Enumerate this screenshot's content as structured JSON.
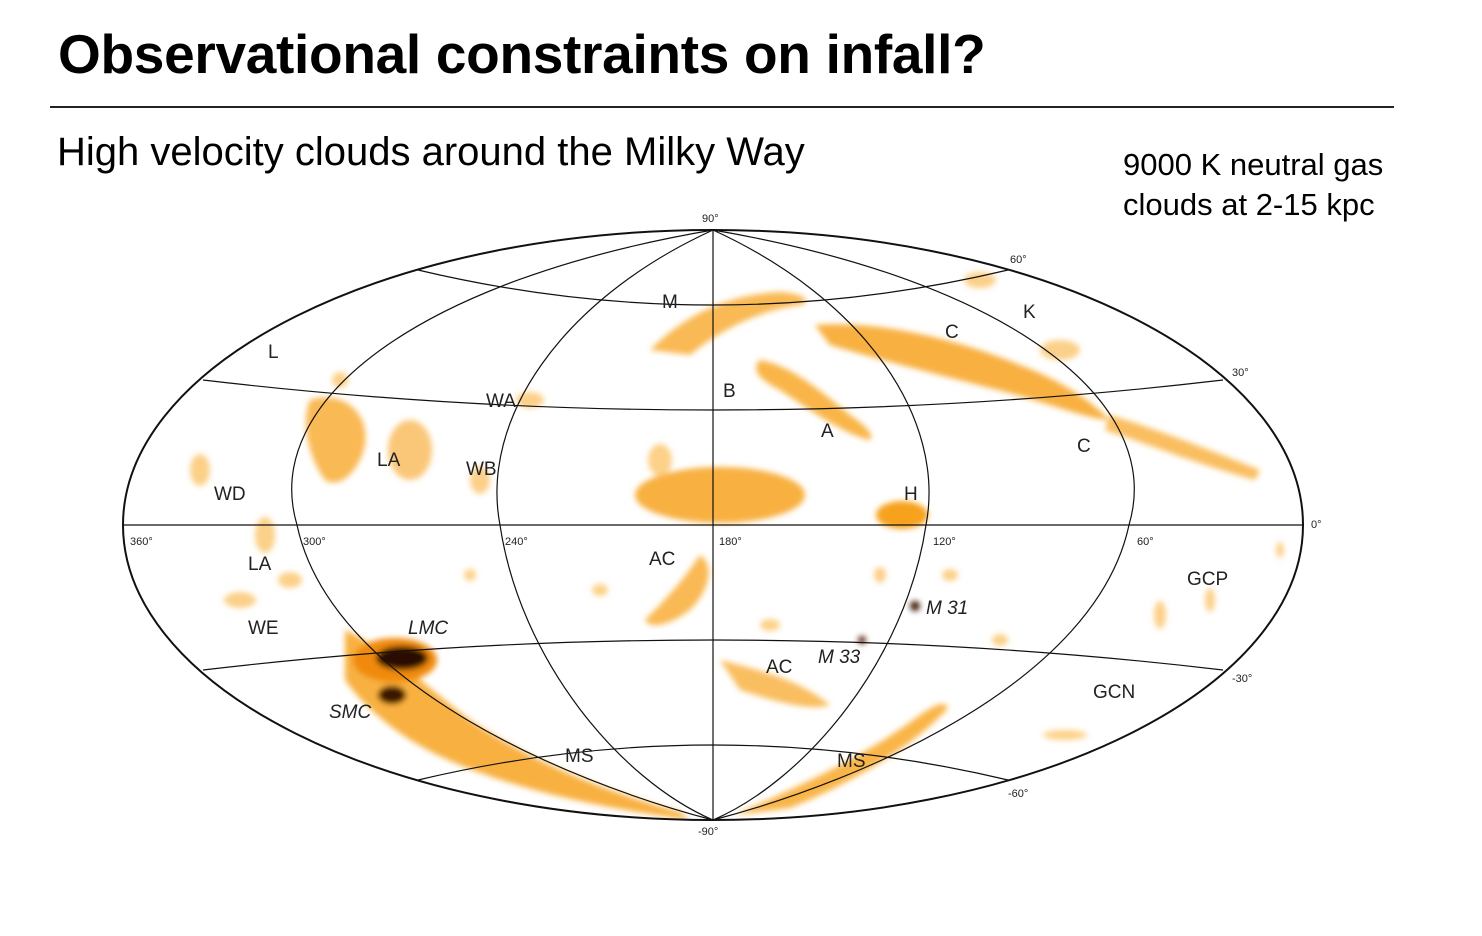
{
  "title": "Observational constraints on infall?",
  "subtitle": "High velocity clouds around the Milky Way",
  "note": {
    "line1": "9000 K neutral gas",
    "line2": "clouds at 2-15 kpc"
  },
  "map": {
    "colors": {
      "cloud": "#f7a21c",
      "cloud_light": "#fbc56b",
      "cloud_dense": "#2a0e04",
      "grid": "#111111"
    },
    "latitude_ticks": {
      "n90": "90°",
      "n60": "60°",
      "n30": "30°",
      "zero": "0°",
      "s30": "-30°",
      "s60": "-60°",
      "s90": "-90°"
    },
    "longitude_ticks": {
      "l360": "360°",
      "l300": "300°",
      "l240": "240°",
      "l180": "180°",
      "l120": "120°",
      "l60": "60°"
    },
    "cloud_labels": {
      "m": "M",
      "l": "L",
      "k": "K",
      "c_upper": "C",
      "c_lower": "C",
      "b": "B",
      "a": "A",
      "wa": "WA",
      "la_upper": "LA",
      "wb": "WB",
      "wd": "WD",
      "h": "H",
      "la_lower": "LA",
      "ac_upper": "AC",
      "gcp": "GCP",
      "m31": "M 31",
      "we": "WE",
      "lmc": "LMC",
      "ac_lower": "AC",
      "m33": "M 33",
      "smc": "SMC",
      "gcn": "GCN",
      "ms_left": "MS",
      "ms_right": "MS"
    }
  }
}
